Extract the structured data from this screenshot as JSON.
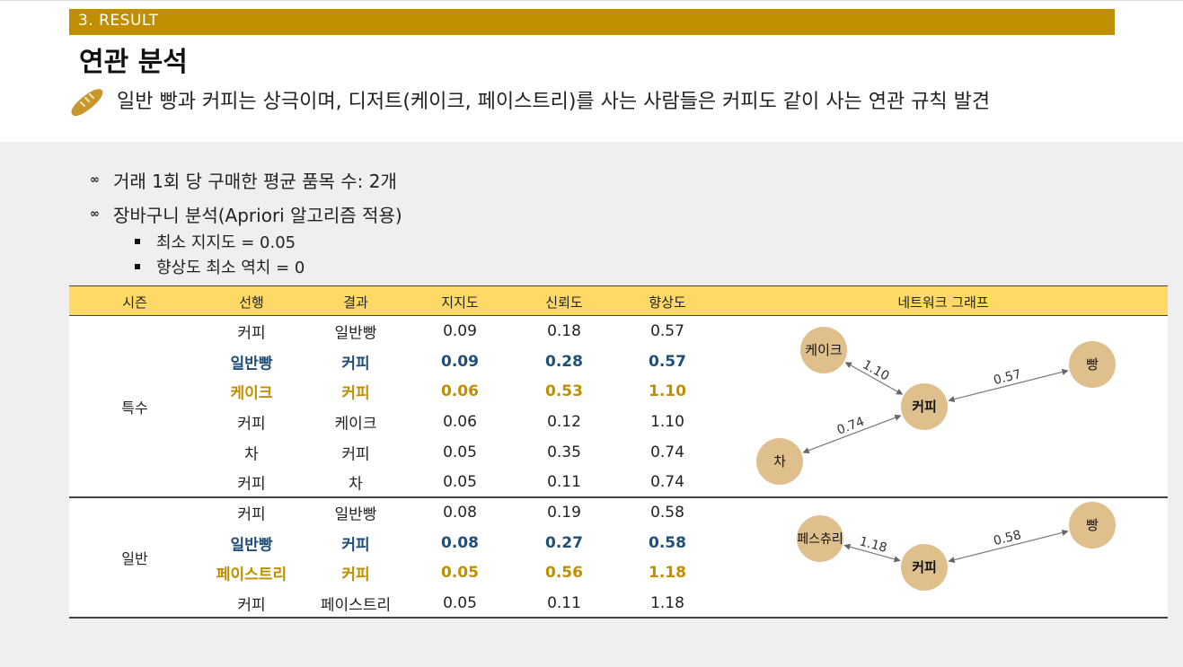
{
  "section_label": "3. RESULT",
  "page_title": "연관 분석",
  "subtitle": "일반 빵과 커피는 상극이며, 디저트(케이크, 페이스트리)를 사는 사람들은 커피도 같이 사는 연관 규칙 발견",
  "bullets": [
    "거래 1회 당 구매한 평균 품목 수: 2개",
    "장바구니 분석(Apriori 알고리즘 적용)"
  ],
  "sub_bullets": [
    "최소 지지도 = 0.05",
    "향상도 최소 역치 = 0"
  ],
  "table": {
    "headers": [
      "시즌",
      "선행",
      "결과",
      "지지도",
      "신뢰도",
      "향상도",
      "네트워크 그래프"
    ],
    "groups": [
      {
        "season": "특수",
        "rows": [
          {
            "ante": "커피",
            "cons": "일반빵",
            "support": "0.09",
            "confidence": "0.18",
            "lift": "0.57",
            "style": ""
          },
          {
            "ante": "일반빵",
            "cons": "커피",
            "support": "0.09",
            "confidence": "0.28",
            "lift": "0.57",
            "style": "blue"
          },
          {
            "ante": "케이크",
            "cons": "커피",
            "support": "0.06",
            "confidence": "0.53",
            "lift": "1.10",
            "style": "gold"
          },
          {
            "ante": "커피",
            "cons": "케이크",
            "support": "0.06",
            "confidence": "0.12",
            "lift": "1.10",
            "style": ""
          },
          {
            "ante": "차",
            "cons": "커피",
            "support": "0.05",
            "confidence": "0.35",
            "lift": "0.74",
            "style": ""
          },
          {
            "ante": "커피",
            "cons": "차",
            "support": "0.05",
            "confidence": "0.11",
            "lift": "0.74",
            "style": ""
          }
        ]
      },
      {
        "season": "일반",
        "rows": [
          {
            "ante": "커피",
            "cons": "일반빵",
            "support": "0.08",
            "confidence": "0.19",
            "lift": "0.58",
            "style": ""
          },
          {
            "ante": "일반빵",
            "cons": "커피",
            "support": "0.08",
            "confidence": "0.27",
            "lift": "0.58",
            "style": "blue"
          },
          {
            "ante": "페이스트리",
            "cons": "커피",
            "support": "0.05",
            "confidence": "0.56",
            "lift": "1.18",
            "style": "gold"
          },
          {
            "ante": "커피",
            "cons": "페이스트리",
            "support": "0.05",
            "confidence": "0.11",
            "lift": "1.18",
            "style": ""
          }
        ]
      }
    ]
  },
  "networks": [
    {
      "nodes": [
        "케이크",
        "빵",
        "커피",
        "차"
      ],
      "edges": [
        {
          "a": "케이크",
          "b": "커피",
          "label": "1.10"
        },
        {
          "a": "커피",
          "b": "빵",
          "label": "0.57"
        },
        {
          "a": "차",
          "b": "커피",
          "label": "0.74"
        }
      ]
    },
    {
      "nodes": [
        "페스츄리",
        "빵",
        "커피"
      ],
      "edges": [
        {
          "a": "페스츄리",
          "b": "커피",
          "label": "1.18"
        },
        {
          "a": "커피",
          "b": "빵",
          "label": "0.58"
        }
      ]
    }
  ],
  "colors": {
    "section_bar": "#bf8f00",
    "header_row": "#ffd966",
    "highlight_blue": "#1f4e79",
    "highlight_gold": "#bf8f00",
    "node_fill": "#dfc08d"
  },
  "icons": {
    "title_icon": "bread-icon",
    "bullet_icon": "pretzel-icon",
    "sub_bullet_icon": "square-bullet-icon"
  }
}
